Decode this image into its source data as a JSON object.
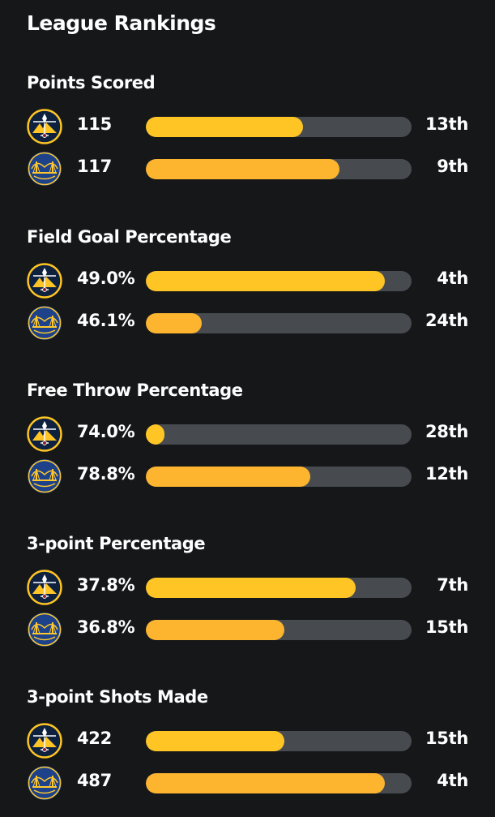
{
  "page": {
    "title": "League Rankings"
  },
  "teams": [
    {
      "logo": "nuggets-logo-icon",
      "color": "#0e2240",
      "accent": "#fec524"
    },
    {
      "logo": "warriors-logo-icon",
      "color": "#1d428a",
      "accent": "#ffc72c"
    }
  ],
  "colors": {
    "background": "#151719",
    "track": "#474b50",
    "fill": "#fec524"
  },
  "categories": [
    {
      "title": "Points Scored",
      "rows": [
        {
          "team": "nuggets",
          "value": "115",
          "rank": "13th",
          "fill_fraction": 0.59
        },
        {
          "team": "warriors",
          "value": "117",
          "rank": "9th",
          "fill_fraction": 0.73
        }
      ]
    },
    {
      "title": "Field Goal Percentage",
      "rows": [
        {
          "team": "nuggets",
          "value": "49.0%",
          "rank": "4th",
          "fill_fraction": 0.9
        },
        {
          "team": "warriors",
          "value": "46.1%",
          "rank": "24th",
          "fill_fraction": 0.21
        }
      ]
    },
    {
      "title": "Free Throw Percentage",
      "rows": [
        {
          "team": "nuggets",
          "value": "74.0%",
          "rank": "28th",
          "fill_fraction": 0.07
        },
        {
          "team": "warriors",
          "value": "78.8%",
          "rank": "12th",
          "fill_fraction": 0.62
        }
      ]
    },
    {
      "title": "3-point Percentage",
      "rows": [
        {
          "team": "nuggets",
          "value": "37.8%",
          "rank": "7th",
          "fill_fraction": 0.79
        },
        {
          "team": "warriors",
          "value": "36.8%",
          "rank": "15th",
          "fill_fraction": 0.52
        }
      ]
    },
    {
      "title": "3-point Shots Made",
      "rows": [
        {
          "team": "nuggets",
          "value": "422",
          "rank": "15th",
          "fill_fraction": 0.52
        },
        {
          "team": "warriors",
          "value": "487",
          "rank": "4th",
          "fill_fraction": 0.9
        }
      ]
    }
  ]
}
